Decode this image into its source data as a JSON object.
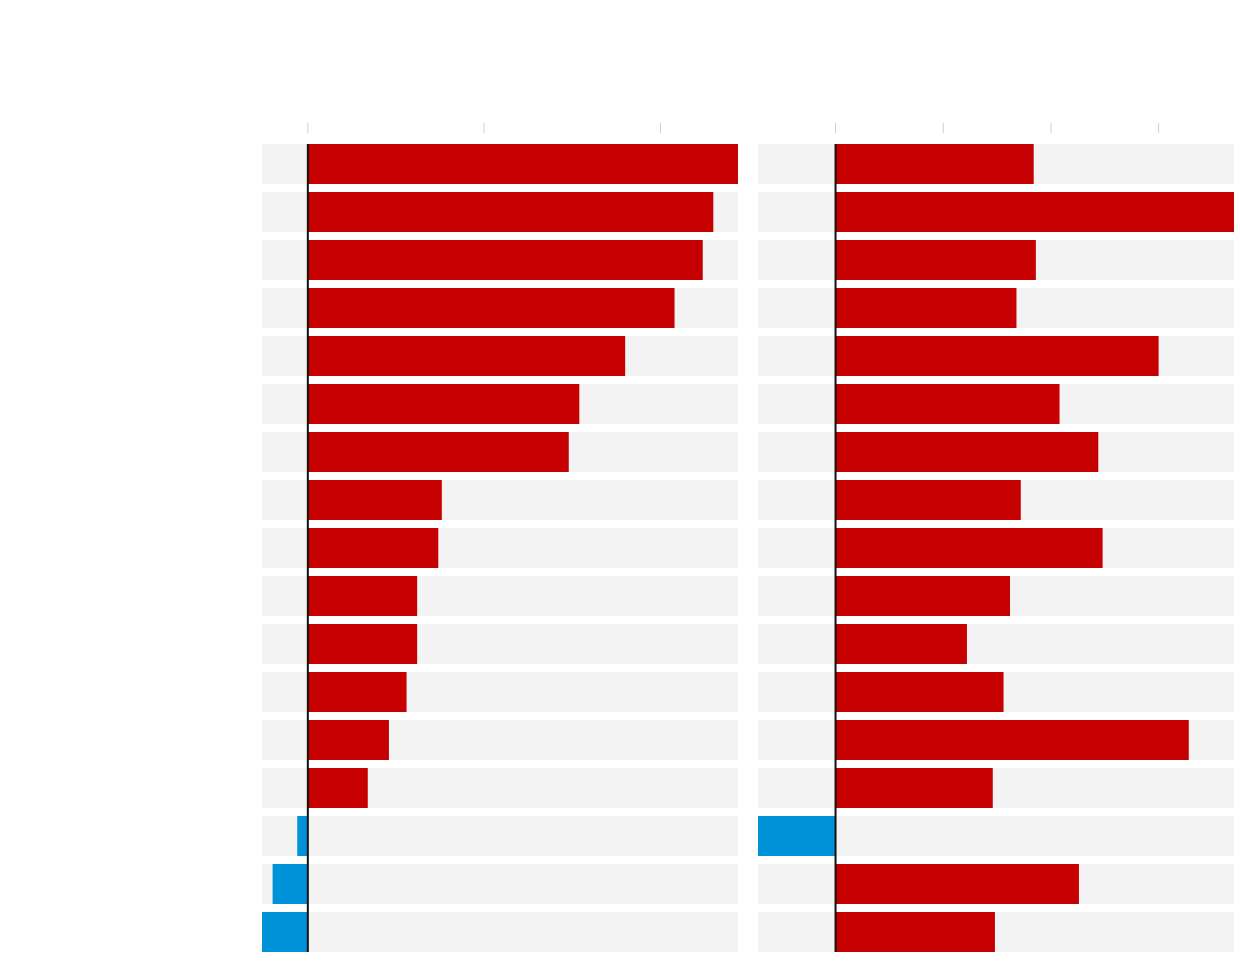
{
  "chart_data": [
    {
      "type": "bar",
      "orientation": "horizontal",
      "title": "",
      "xlabel": "",
      "ylabel": "",
      "xlim": [
        -2.6,
        24.4
      ],
      "ticks": [
        0,
        10,
        20
      ],
      "tick_labels": [],
      "grid": false,
      "categories": [
        "",
        "",
        "",
        "",
        "",
        "",
        "",
        "",
        "",
        "",
        "",
        "",
        "",
        "",
        "",
        "",
        ""
      ],
      "values": [
        24.4,
        23.0,
        22.4,
        20.8,
        18.0,
        15.4,
        14.8,
        7.6,
        7.4,
        6.2,
        6.2,
        5.6,
        4.6,
        3.4,
        -0.6,
        -2.0,
        -2.6
      ]
    },
    {
      "type": "bar",
      "orientation": "horizontal",
      "title": "",
      "xlabel": "",
      "ylabel": "",
      "xlim": [
        -7.2,
        37.0
      ],
      "ticks": [
        0,
        10,
        20,
        30
      ],
      "tick_labels": [],
      "grid": false,
      "categories": [
        "",
        "",
        "",
        "",
        "",
        "",
        "",
        "",
        "",
        "",
        "",
        "",
        "",
        "",
        "",
        "",
        ""
      ],
      "values": [
        18.4,
        37.0,
        18.6,
        16.8,
        30.0,
        20.8,
        24.4,
        17.2,
        24.8,
        16.2,
        12.2,
        15.6,
        32.8,
        14.6,
        -7.2,
        22.6,
        14.8
      ]
    }
  ],
  "colors": {
    "positive": "#c60000",
    "negative": "#0092d8",
    "track": "#f3f3f3",
    "axis": "#111111",
    "tick": "#cccccc"
  }
}
